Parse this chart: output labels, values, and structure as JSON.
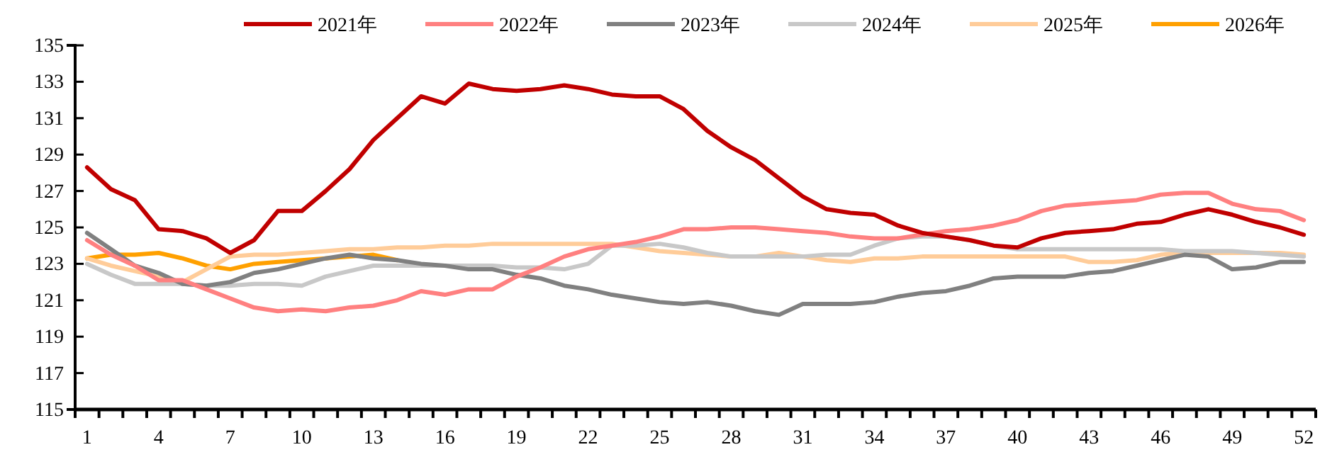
{
  "chart_data": {
    "type": "line",
    "categories": [
      "1",
      null,
      null,
      "4",
      null,
      null,
      "7",
      null,
      null,
      "10",
      null,
      null,
      "13",
      null,
      null,
      "16",
      null,
      null,
      "19",
      null,
      null,
      "22",
      null,
      null,
      "25",
      null,
      null,
      "28",
      null,
      null,
      "31",
      null,
      null,
      "34",
      null,
      null,
      "37",
      null,
      null,
      "40",
      null,
      null,
      "43",
      null,
      null,
      "46",
      null,
      null,
      "49",
      null,
      null,
      "52"
    ],
    "ylim": [
      115,
      135
    ],
    "yticks": [
      115,
      117,
      119,
      121,
      123,
      125,
      127,
      129,
      131,
      133,
      135
    ],
    "grid": false,
    "legend": "top",
    "marker": "none",
    "line_style": "solid",
    "series": [
      {
        "name": "2021年",
        "color": "#c00000",
        "values": [
          128.3,
          127.1,
          126.5,
          124.9,
          124.8,
          124.4,
          123.6,
          124.3,
          125.9,
          125.9,
          127.0,
          128.2,
          129.8,
          131.0,
          132.2,
          131.8,
          132.9,
          132.6,
          132.5,
          132.6,
          132.8,
          132.6,
          132.3,
          132.2,
          132.2,
          131.5,
          130.3,
          129.4,
          128.7,
          127.7,
          126.7,
          126.0,
          125.8,
          125.7,
          125.1,
          124.7,
          124.5,
          124.3,
          124.0,
          123.9,
          124.4,
          124.7,
          124.8,
          124.9,
          125.2,
          125.3,
          125.7,
          126.0,
          125.7,
          125.3,
          125.0,
          124.6
        ]
      },
      {
        "name": "2022年",
        "color": "#ff8080",
        "values": [
          124.3,
          123.5,
          122.9,
          122.1,
          122.1,
          121.6,
          121.1,
          120.6,
          120.4,
          120.5,
          120.4,
          120.6,
          120.7,
          121.0,
          121.5,
          121.3,
          121.6,
          121.6,
          122.3,
          122.8,
          123.4,
          123.8,
          124.0,
          124.2,
          124.5,
          124.9,
          124.9,
          125.0,
          125.0,
          124.9,
          124.8,
          124.7,
          124.5,
          124.4,
          124.4,
          124.6,
          124.8,
          124.9,
          125.1,
          125.4,
          125.9,
          126.2,
          126.3,
          126.4,
          126.5,
          126.8,
          126.9,
          126.9,
          126.3,
          126.0,
          125.9,
          125.4
        ]
      },
      {
        "name": "2023年",
        "color": "#808080",
        "values": [
          124.7,
          123.8,
          122.9,
          122.5,
          121.9,
          121.8,
          122.0,
          122.5,
          122.7,
          123.0,
          123.3,
          123.5,
          123.3,
          123.2,
          123.0,
          122.9,
          122.7,
          122.7,
          122.4,
          122.2,
          121.8,
          121.6,
          121.3,
          121.1,
          120.9,
          120.8,
          120.9,
          120.7,
          120.4,
          120.2,
          120.8,
          120.8,
          120.8,
          120.9,
          121.2,
          121.4,
          121.5,
          121.8,
          122.2,
          122.3,
          122.3,
          122.3,
          122.5,
          122.6,
          122.9,
          123.2,
          123.5,
          123.4,
          122.7,
          122.8,
          123.1,
          123.1
        ]
      },
      {
        "name": "2024年",
        "color": "#c8c8c8",
        "values": [
          123.0,
          122.4,
          121.9,
          121.9,
          121.9,
          121.8,
          121.8,
          121.9,
          121.9,
          121.8,
          122.3,
          122.6,
          122.9,
          122.9,
          122.9,
          122.9,
          122.9,
          122.9,
          122.8,
          122.8,
          122.7,
          123.0,
          124.0,
          124.0,
          124.1,
          123.9,
          123.6,
          123.4,
          123.4,
          123.4,
          123.4,
          123.5,
          123.5,
          124.0,
          124.4,
          124.5,
          124.5,
          124.3,
          124.0,
          123.8,
          123.8,
          123.8,
          123.8,
          123.8,
          123.8,
          123.8,
          123.7,
          123.7,
          123.7,
          123.6,
          123.5,
          123.4
        ]
      },
      {
        "name": "2025年",
        "color": "#ffcc99",
        "values": [
          123.3,
          122.9,
          122.6,
          122.3,
          122.0,
          122.7,
          123.4,
          123.5,
          123.5,
          123.6,
          123.7,
          123.8,
          123.8,
          123.9,
          123.9,
          124.0,
          124.0,
          124.1,
          124.1,
          124.1,
          124.1,
          124.1,
          124.1,
          123.9,
          123.7,
          123.6,
          123.5,
          123.4,
          123.4,
          123.6,
          123.4,
          123.2,
          123.1,
          123.3,
          123.3,
          123.4,
          123.4,
          123.4,
          123.4,
          123.4,
          123.4,
          123.4,
          123.1,
          123.1,
          123.2,
          123.5,
          123.6,
          123.6,
          123.6,
          123.6,
          123.6,
          123.5
        ]
      },
      {
        "name": "2026年",
        "color": "#ffa000",
        "values": [
          123.3,
          123.5,
          123.5,
          123.6,
          123.3,
          122.9,
          122.7,
          123.0,
          123.1,
          123.2,
          123.3,
          123.4,
          123.5,
          123.2,
          null,
          null,
          null,
          null,
          null,
          null,
          null,
          null,
          null,
          null,
          null,
          null,
          null,
          null,
          null,
          null,
          null,
          null,
          null,
          null,
          null,
          null,
          null,
          null,
          null,
          null,
          null,
          null,
          null,
          null,
          null,
          null,
          null,
          null,
          null,
          null,
          null,
          null
        ]
      }
    ]
  }
}
